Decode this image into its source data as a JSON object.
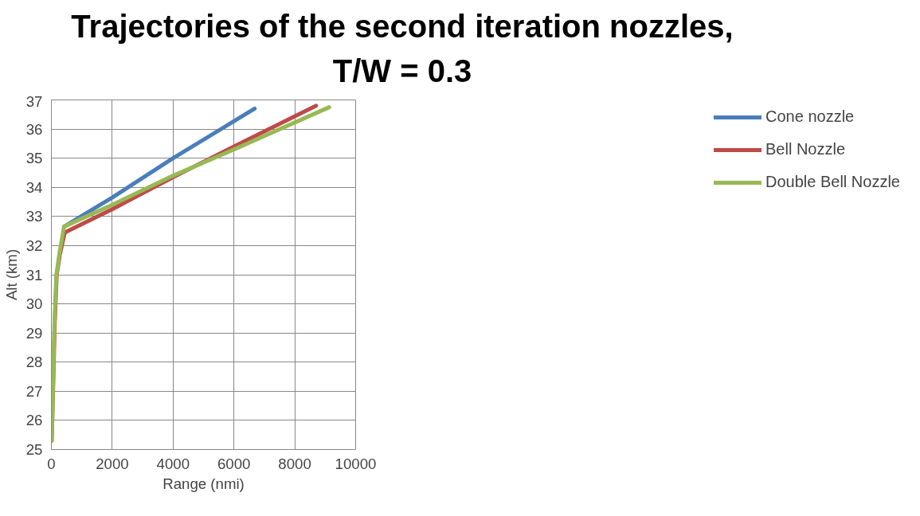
{
  "chart_data": {
    "type": "line",
    "title": "Trajectories of the second iteration nozzles,\nT/W  = 0.3",
    "xlabel": "Range (nmi)",
    "ylabel": "Alt (km)",
    "xlim": [
      0,
      10000
    ],
    "xticks": [
      0,
      2000,
      4000,
      6000,
      8000,
      10000
    ],
    "ylim": [
      25,
      37
    ],
    "yticks": [
      25,
      26,
      27,
      28,
      29,
      30,
      31,
      32,
      33,
      34,
      35,
      36,
      37
    ],
    "grid": true,
    "legend": "right",
    "series": [
      {
        "name": "Cone nozzle",
        "color": "#4a7ebb",
        "x": [
          416,
          2000,
          4000,
          6680
        ],
        "values": [
          32.65,
          33.65,
          35.0,
          36.7
        ]
      },
      {
        "name": "Bell Nozzle",
        "color": "#be4b48",
        "x": [
          12,
          55,
          110,
          175,
          280,
          440,
          2000,
          4000,
          6000,
          8700
        ],
        "values": [
          25.3,
          27.0,
          29.3,
          31.0,
          31.7,
          32.45,
          33.25,
          34.35,
          35.4,
          36.8
        ]
      },
      {
        "name": "Double Bell Nozzle",
        "color": "#98b954",
        "x": [
          10,
          50,
          100,
          165,
          266,
          416,
          2000,
          4000,
          6000,
          9130
        ],
        "values": [
          25.3,
          27.0,
          29.3,
          31.0,
          31.75,
          32.65,
          33.4,
          34.4,
          35.3,
          36.75
        ]
      }
    ]
  }
}
